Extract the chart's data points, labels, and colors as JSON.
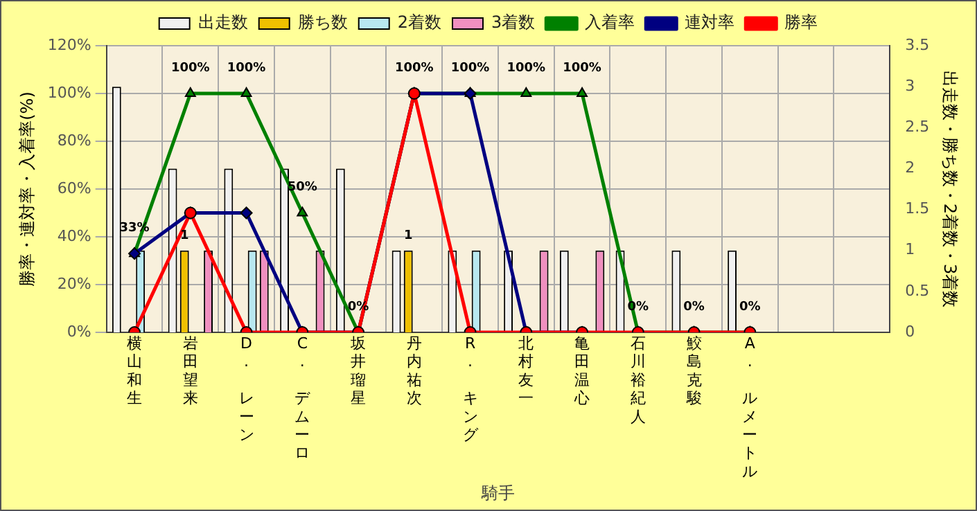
{
  "chart_data": {
    "type": "bar",
    "xlabel": "騎手",
    "ylabel": "勝率・連対率・入着率(%)",
    "y2label": "出走数・勝ち数・2着数・3着数",
    "categories": [
      "横山和生",
      "岩田望来",
      "D. レーン",
      "C. デムーロ",
      "坂井瑠星",
      "丹内祐次",
      "R. キング",
      "北村友一",
      "亀田温心",
      "石川裕紀人",
      "鮫島克駿",
      "A. ルメートル",
      null,
      null
    ],
    "ylim": [
      0,
      120
    ],
    "yticks": [
      {
        "value": 0,
        "label": "0%"
      },
      {
        "value": 20,
        "label": "20%"
      },
      {
        "value": 40,
        "label": "40%"
      },
      {
        "value": 60,
        "label": "60%"
      },
      {
        "value": 80,
        "label": "80%"
      },
      {
        "value": 100,
        "label": "100%"
      },
      {
        "value": 120,
        "label": "120%"
      }
    ],
    "y2lim": [
      0,
      3.5
    ],
    "y2ticks": [
      0,
      0.5,
      1,
      1.5,
      2,
      2.5,
      3,
      3.5
    ],
    "grid": true,
    "legend": "top",
    "series": [
      {
        "name": "出走数",
        "axis": "y2",
        "color": "#f0f0f0",
        "values": [
          3,
          2,
          2,
          2,
          2,
          1,
          1,
          1,
          1,
          1,
          1,
          1,
          null,
          null
        ]
      },
      {
        "name": "勝ち数",
        "axis": "y2",
        "color": "#f0c000",
        "values": [
          0,
          1,
          0,
          0,
          0,
          1,
          0,
          0,
          0,
          0,
          0,
          0,
          null,
          null
        ],
        "value_labels": [
          null,
          "1",
          null,
          null,
          null,
          "1",
          null,
          null,
          null,
          null,
          null,
          null,
          null,
          null
        ]
      },
      {
        "name": "2着数",
        "axis": "y2",
        "color": "#b8e8f0",
        "values": [
          1,
          0,
          1,
          0,
          0,
          0,
          1,
          0,
          0,
          0,
          0,
          0,
          null,
          null
        ]
      },
      {
        "name": "3着数",
        "axis": "y2",
        "color": "#f090c0",
        "values": [
          0,
          1,
          1,
          1,
          0,
          0,
          0,
          1,
          1,
          0,
          0,
          0,
          null,
          null
        ]
      },
      {
        "name": "入着率",
        "type": "line",
        "axis": "y",
        "color": "#008000",
        "marker": "triangle",
        "values": [
          33,
          100,
          100,
          50,
          0,
          100,
          100,
          100,
          100,
          0,
          0,
          0,
          null,
          null
        ],
        "value_labels": [
          "33%",
          "100%",
          "100%",
          "50%",
          "0%",
          "100%",
          "100%",
          "100%",
          "100%",
          "0%",
          "0%",
          "0%",
          null,
          null
        ]
      },
      {
        "name": "連対率",
        "type": "line",
        "axis": "y",
        "color": "#000080",
        "marker": "diamond",
        "values": [
          33,
          50,
          50,
          0,
          0,
          100,
          100,
          0,
          0,
          null,
          null,
          null,
          null,
          null
        ]
      },
      {
        "name": "勝率",
        "type": "line",
        "axis": "y",
        "color": "#ff0000",
        "marker": "circle",
        "values": [
          0,
          50,
          0,
          0,
          0,
          100,
          0,
          0,
          0,
          0,
          0,
          0,
          null,
          null
        ]
      }
    ]
  }
}
